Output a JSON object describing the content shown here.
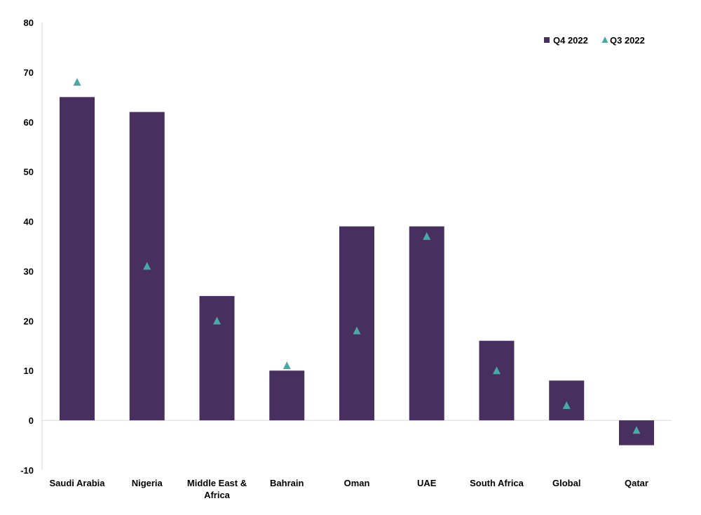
{
  "chart_data": {
    "type": "bar",
    "title": "",
    "xlabel": "",
    "ylabel": "",
    "ylim": [
      -10,
      80
    ],
    "yticks": [
      -10,
      0,
      10,
      20,
      30,
      40,
      50,
      60,
      70,
      80
    ],
    "grid": false,
    "legend_position": "top-right",
    "categories": [
      [
        "Saudi Arabia"
      ],
      [
        "Nigeria"
      ],
      [
        "Middle East &",
        "Africa"
      ],
      [
        "Bahrain"
      ],
      [
        "Oman"
      ],
      [
        "UAE"
      ],
      [
        "South Africa"
      ],
      [
        "Global"
      ],
      [
        "Qatar"
      ]
    ],
    "series": [
      {
        "name": "Q4 2022",
        "mark": "bar",
        "color": "#47305f",
        "values": [
          65,
          62,
          25,
          10,
          39,
          39,
          16,
          8,
          -5
        ]
      },
      {
        "name": "Q3 2022",
        "mark": "triangle",
        "color": "#4aa9a6",
        "values": [
          68,
          31,
          20,
          11,
          18,
          37,
          10,
          3,
          -2
        ]
      }
    ]
  }
}
